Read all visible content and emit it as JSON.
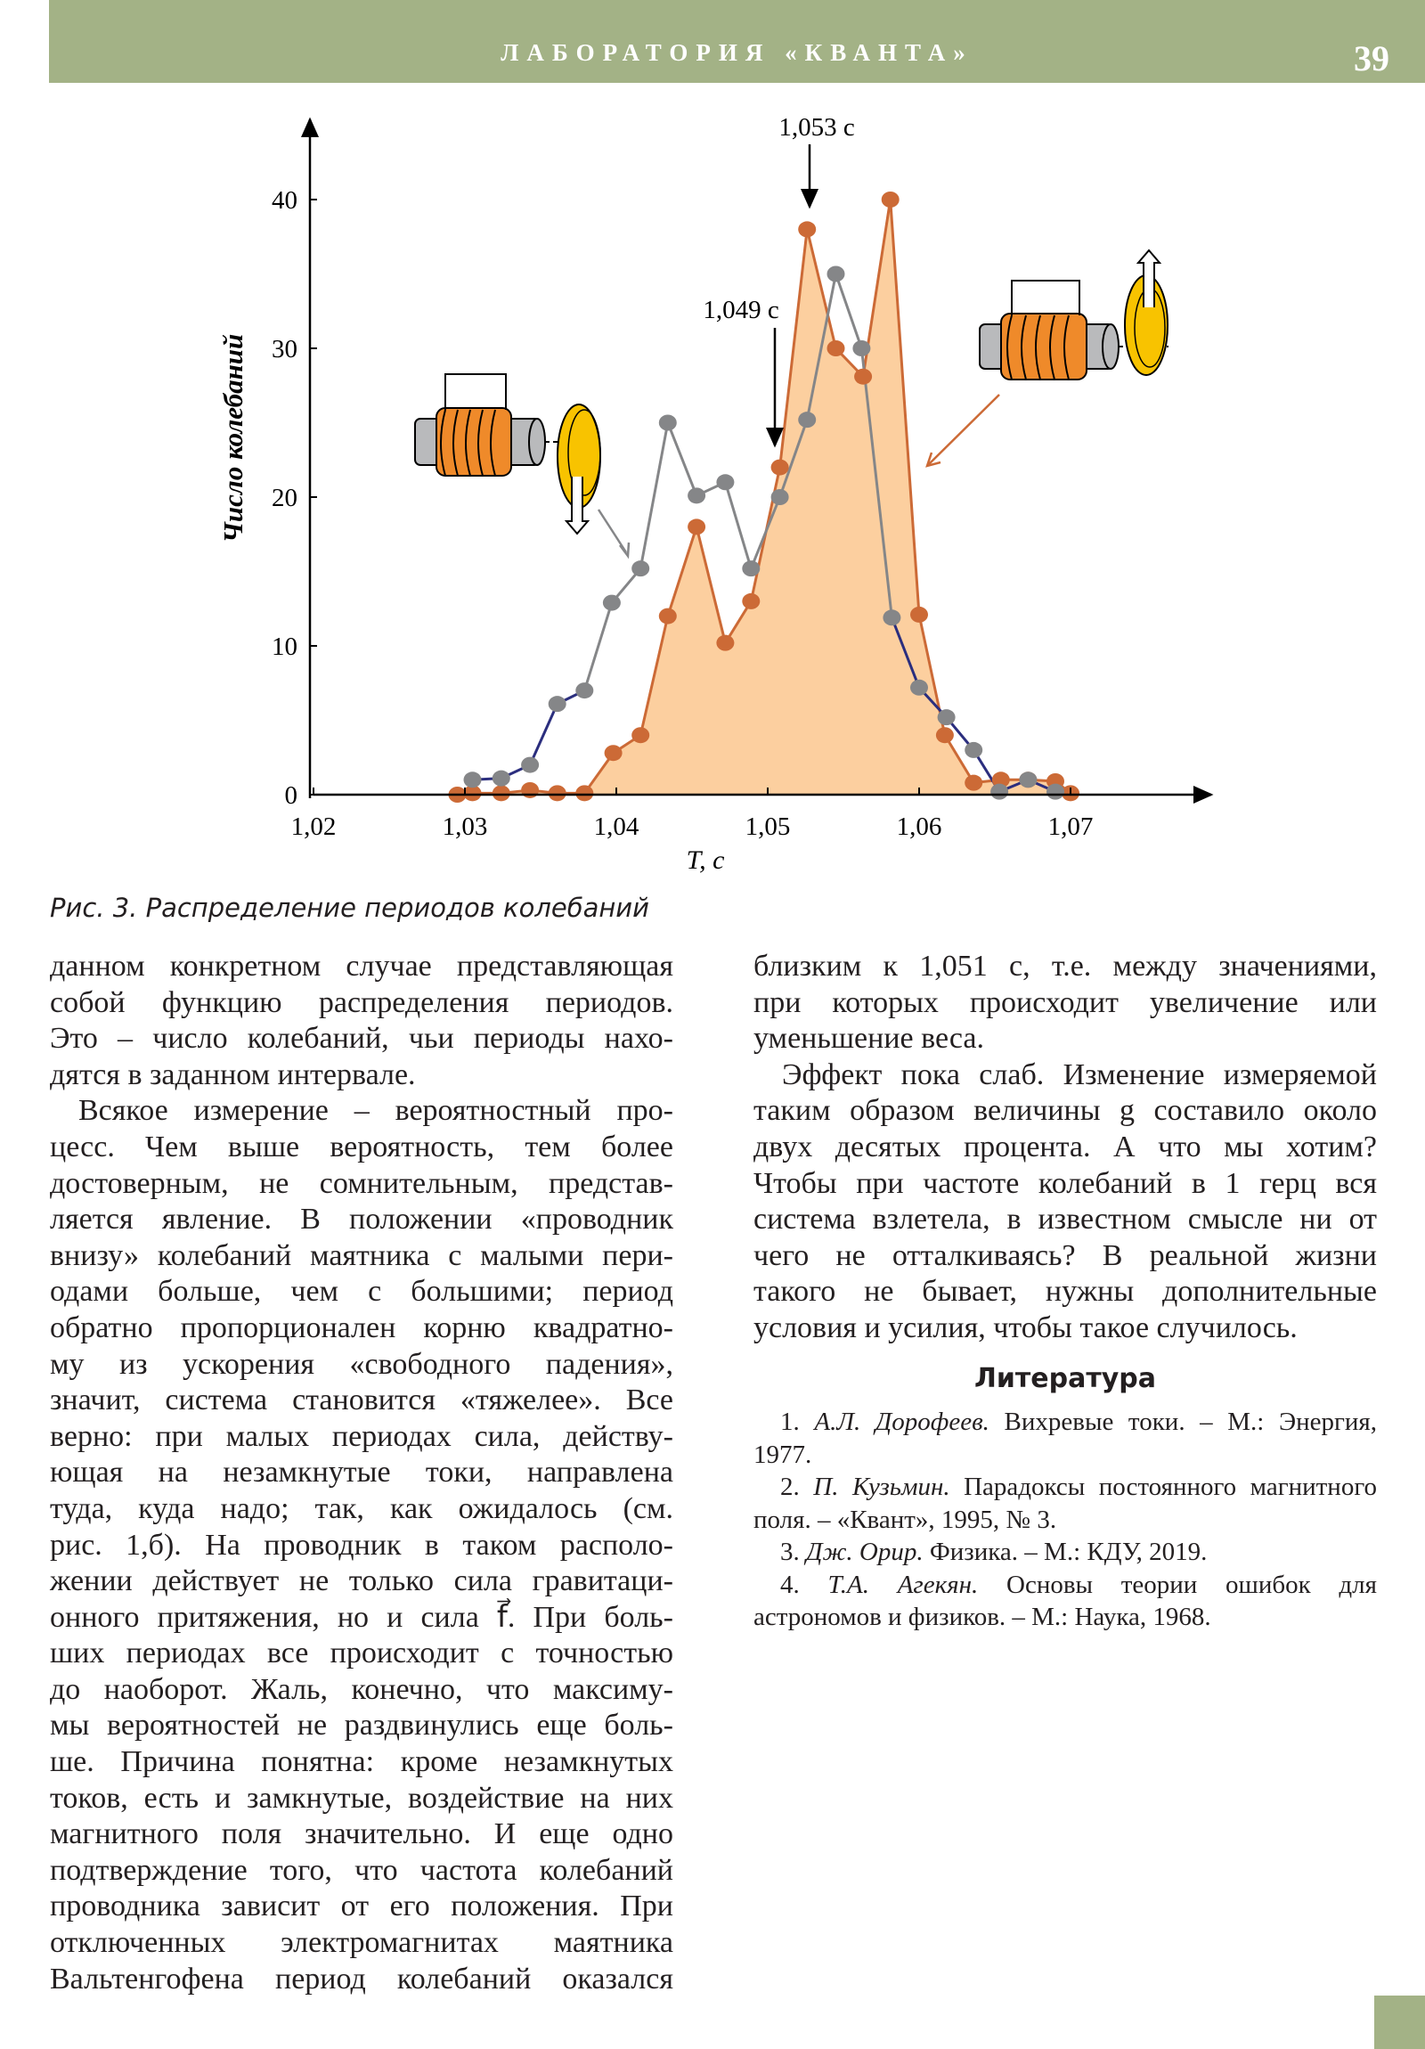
{
  "header": {
    "title": "ЛАБОРАТОРИЯ «КВАНТА»",
    "page_number": "39"
  },
  "chart_data": {
    "type": "line",
    "title": "",
    "xlabel": "T, c",
    "ylabel": "Число колебаний",
    "xlim": [
      1.02,
      1.075
    ],
    "ylim": [
      0,
      44
    ],
    "x_ticks": [
      "1,02",
      "1,03",
      "1,04",
      "1,05",
      "1,06",
      "1,07"
    ],
    "x_tick_values": [
      1.02,
      1.03,
      1.04,
      1.05,
      1.06,
      1.07
    ],
    "y_ticks": [
      "0",
      "10",
      "20",
      "30",
      "40"
    ],
    "y_tick_values": [
      0,
      10,
      20,
      30,
      40
    ],
    "grid": false,
    "annotations": [
      {
        "text": "1,053 c",
        "x": 1.053
      },
      {
        "text": "1,049 c",
        "x": 1.049
      }
    ],
    "series": [
      {
        "name": "проводник внизу (orange, filled)",
        "color": "#cc6a36",
        "fill": "#fccf9f",
        "x": [
          1.0295,
          1.0305,
          1.0324,
          1.0343,
          1.0361,
          1.0379,
          1.0398,
          1.0416,
          1.0434,
          1.0453,
          1.0472,
          1.0489,
          1.0508,
          1.0526,
          1.0545,
          1.0563,
          1.0581,
          1.06,
          1.0617,
          1.0636,
          1.0654,
          1.0672,
          1.069,
          1.07
        ],
        "y": [
          0,
          0.1,
          0.1,
          0.3,
          0.1,
          0.1,
          2.8,
          4,
          12,
          18,
          10.2,
          13,
          22,
          38,
          30,
          28.1,
          40,
          12.1,
          4,
          0.8,
          1,
          1,
          0.9,
          0.1
        ]
      },
      {
        "name": "проводник вверху (gray)",
        "color": "#858688",
        "tail_color": "#2b2e7e",
        "x": [
          1.0305,
          1.0324,
          1.0343,
          1.0361,
          1.0379,
          1.0397,
          1.0416,
          1.0434,
          1.0453,
          1.0472,
          1.0489,
          1.0508,
          1.0526,
          1.0545,
          1.0562,
          1.0582,
          1.06,
          1.0618,
          1.0636,
          1.0653,
          1.0672,
          1.069
        ],
        "y": [
          1,
          1.1,
          2,
          6.1,
          7,
          12.9,
          15.2,
          25,
          20.1,
          21,
          15.2,
          20,
          25.2,
          35,
          30,
          11.9,
          7.2,
          5.2,
          3,
          0.2,
          1,
          0.2
        ]
      }
    ]
  },
  "caption": "Рис. 3. Распределение периодов колебаний",
  "left_column": [
    {
      "indent": false,
      "lines": [
        "данном конкретном случае представляющая",
        "собой функцию распределения периодов.",
        "Это – число колебаний, чьи периоды нахо-",
        "дятся в заданном интервале."
      ]
    },
    {
      "indent": true,
      "lines": [
        "Всякое измерение – вероятностный про-",
        "цесс. Чем выше вероятность, тем более",
        "достоверным, не сомнительным, представ-",
        "ляется явление. В положении «проводник",
        "внизу» колебаний маятника с малыми пери-",
        "одами больше, чем с большими; период",
        "обратно пропорционален корню квадратно-",
        "му из ускорения «свободного падения»,",
        "значит, система становится «тяжелее». Все",
        "верно: при малых периодах сила, действу-",
        "ющая на незамкнутые токи, направлена",
        "туда, куда надо; так, как ожидалось (см.",
        "рис. 1,б). На проводник в таком располо-",
        "жении действует не только сила гравитаци-",
        "онного притяжения, но и сила f⃗. При боль-",
        "ших периодах все происходит с точностью",
        "до наоборот. Жаль, конечно, что максиму-",
        "мы вероятностей не раздвинулись еще боль-",
        "ше. Причина понятна: кроме незамкнутых",
        "токов, есть и замкнутые, воздействие на них",
        "магнитного поля значительно. И еще одно",
        "подтверждение того, что частота колебаний",
        "проводника зависит от его положения. При",
        "отключенных электромагнитах маятника",
        "Вальтенгофена период колебаний оказался"
      ],
      "continues": true
    }
  ],
  "right_column": [
    {
      "indent": false,
      "lines": [
        "близким к 1,051 с, т.е. между значениями,",
        "при которых происходит увеличение или",
        "уменьшение веса."
      ]
    },
    {
      "indent": true,
      "lines": [
        "Эффект пока слаб. Изменение измеряемой",
        "таким образом величины g составило около",
        "двух десятых процента. А что мы хотим?",
        "Чтобы при частоте колебаний в 1 герц вся",
        "система взлетела, в известном смысле ни от",
        "чего не отталкиваясь? В реальной жизни",
        "такого не бывает, нужны дополнительные",
        "условия и усилия, чтобы такое случилось."
      ]
    }
  ],
  "literature": {
    "title": "Литература",
    "items": [
      {
        "num": "1.",
        "author": "А.Л. Дорофеев.",
        "rest": "Вихревые токи. – М.: Энергия, 1977."
      },
      {
        "num": "2.",
        "author": "П. Кузьмин.",
        "rest": "Парадоксы постоянного магнитного поля. – «Квант», 1995, № 3."
      },
      {
        "num": "3.",
        "author": "Дж. Орир.",
        "rest": "Физика. – М.: КДУ, 2019."
      },
      {
        "num": "4.",
        "author": "Т.А. Агекян.",
        "rest": "Основы теории ошибок для астрономов и физиков. – М.: Наука, 1968."
      }
    ]
  }
}
